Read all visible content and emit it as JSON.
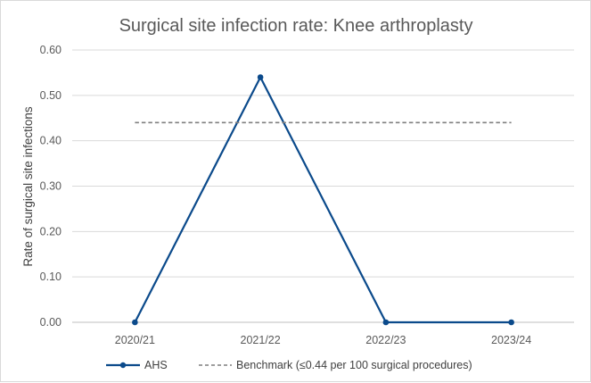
{
  "chart_data": {
    "type": "line",
    "title": "Surgical site infection rate: Knee arthroplasty",
    "xlabel": "",
    "ylabel": "Rate of surgical site infections",
    "categories": [
      "2020/21",
      "2021/22",
      "2022/23",
      "2023/24"
    ],
    "ylim": [
      0,
      0.6
    ],
    "yticks": [
      "0.00",
      "0.10",
      "0.20",
      "0.30",
      "0.40",
      "0.50",
      "0.60"
    ],
    "grid": true,
    "legend_position": "bottom",
    "series": [
      {
        "name": "AHS",
        "values": [
          0,
          0.54,
          0,
          0
        ],
        "color": "#0b4a8b",
        "style": "solid-markers"
      },
      {
        "name": "Benchmark (≤0.44 per 100 surgical procedures)",
        "values": [
          0.44,
          0.44,
          0.44,
          0.44
        ],
        "color": "#7f7f7f",
        "style": "dashed"
      }
    ]
  }
}
